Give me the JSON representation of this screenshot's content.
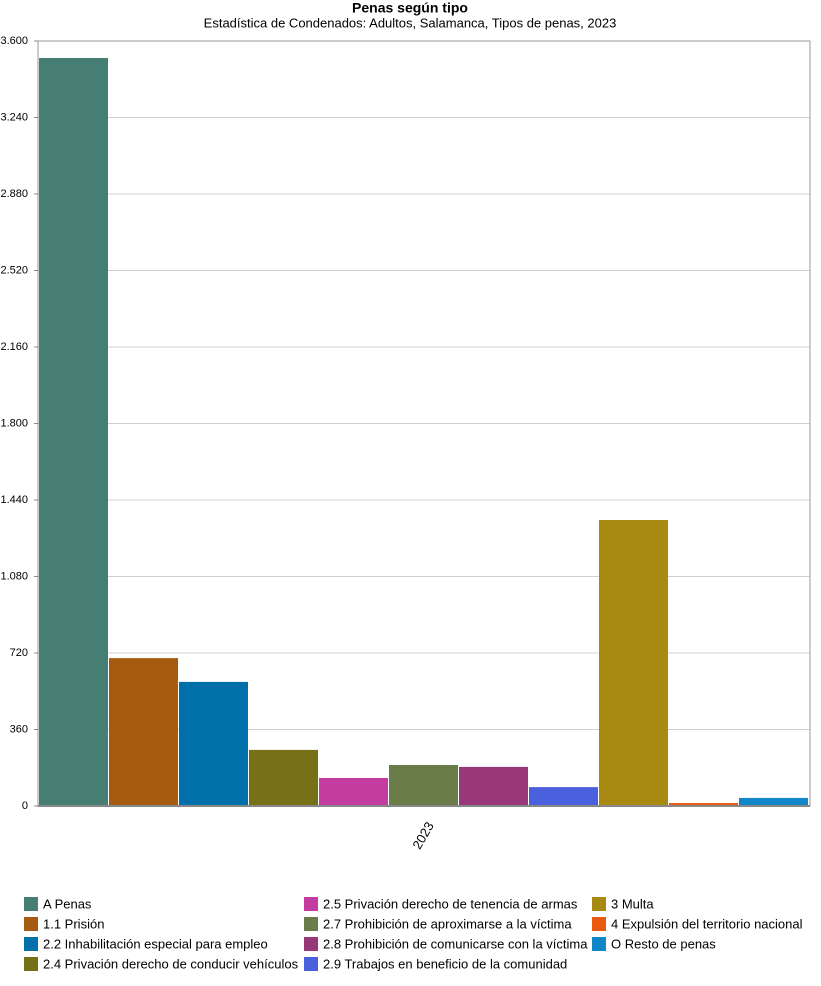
{
  "chart_data": {
    "type": "bar",
    "title": "Penas según tipo",
    "subtitle": "Estadística de Condenados: Adultos, Salamanca, Tipos de penas, 2023",
    "categories": [
      "2023"
    ],
    "series": [
      {
        "name": "A Penas",
        "color": "#467e74",
        "values": [
          3520
        ]
      },
      {
        "name": "1.1 Prisión",
        "color": "#a65c10",
        "values": [
          696
        ]
      },
      {
        "name": "2.2 Inhabilitación especial para empleo",
        "color": "#0070aa",
        "values": [
          584
        ]
      },
      {
        "name": "2.4 Privación derecho de conducir vehículos",
        "color": "#767016",
        "values": [
          264
        ]
      },
      {
        "name": "2.5 Privación derecho de tenencia de armas",
        "color": "#c43c9f",
        "values": [
          132
        ]
      },
      {
        "name": "2.7 Prohibición de aproximarse a la víctima",
        "color": "#6a7c4a",
        "values": [
          193
        ]
      },
      {
        "name": "2.8 Prohibición de comunicarse con la víctima",
        "color": "#983878",
        "values": [
          184
        ]
      },
      {
        "name": "2.9 Trabajos en beneficio de la comunidad",
        "color": "#4a60dc",
        "values": [
          89
        ]
      },
      {
        "name": "3 Multa",
        "color": "#a88a12",
        "values": [
          1346
        ]
      },
      {
        "name": "4 Expulsión del territorio nacional",
        "color": "#e85a10",
        "values": [
          14
        ]
      },
      {
        "name": "O Resto de penas",
        "color": "#1287c8",
        "values": [
          38
        ]
      }
    ],
    "ylim": [
      0,
      3600
    ],
    "yticks": [
      0,
      360,
      720,
      {
        "value": 1080,
        "label": "1.080"
      },
      {
        "value": 1440,
        "label": "1.440"
      },
      {
        "value": 1800,
        "label": "1.800"
      },
      {
        "value": 2160,
        "label": "2.160"
      },
      {
        "value": 2520,
        "label": "2.520"
      },
      {
        "value": 2880,
        "label": "2.880"
      },
      {
        "value": 3240,
        "label": "3.240"
      },
      {
        "value": 3600,
        "label": "3.600"
      }
    ],
    "grid": true
  }
}
